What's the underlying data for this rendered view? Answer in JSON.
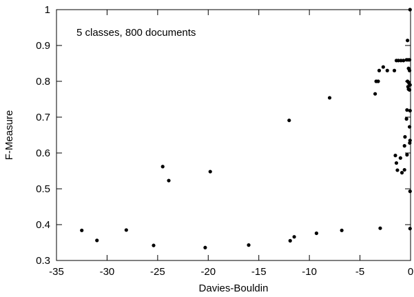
{
  "chart_data": {
    "type": "scatter",
    "xlabel": "Davies-Bouldin",
    "ylabel": "F-Measure",
    "annotation": "5 classes, 800 documents",
    "xlim": [
      -35,
      0
    ],
    "ylim": [
      0.3,
      1
    ],
    "xticks": [
      -35,
      -30,
      -25,
      -20,
      -15,
      -10,
      -5,
      0
    ],
    "yticks": [
      0.3,
      0.4,
      0.5,
      0.6,
      0.7,
      0.8,
      0.9,
      1
    ],
    "xtick_labels": [
      "-35",
      "-30",
      "-25",
      "-20",
      "-15",
      "-10",
      "-5",
      "0"
    ],
    "ytick_labels": [
      "0.3",
      "0.4",
      "0.5",
      "0.6",
      "0.7",
      "0.8",
      "0.9",
      "1"
    ],
    "grid": false,
    "marker_color": "#000000",
    "points": [
      [
        -32.5,
        0.384
      ],
      [
        -31.0,
        0.356
      ],
      [
        -28.1,
        0.385
      ],
      [
        -25.4,
        0.342
      ],
      [
        -24.5,
        0.562
      ],
      [
        -23.9,
        0.523
      ],
      [
        -20.3,
        0.336
      ],
      [
        -19.8,
        0.548
      ],
      [
        -16.0,
        0.343
      ],
      [
        -12.0,
        0.691
      ],
      [
        -11.9,
        0.355
      ],
      [
        -11.5,
        0.366
      ],
      [
        -9.3,
        0.376
      ],
      [
        -8.0,
        0.754
      ],
      [
        -6.8,
        0.384
      ],
      [
        -3.5,
        0.765
      ],
      [
        -3.4,
        0.8
      ],
      [
        -3.2,
        0.8
      ],
      [
        -3.1,
        0.83
      ],
      [
        -3.0,
        0.39
      ],
      [
        -2.7,
        0.84
      ],
      [
        -2.3,
        0.83
      ],
      [
        -1.6,
        0.83
      ],
      [
        -1.4,
        0.858
      ],
      [
        -1.2,
        0.858
      ],
      [
        -0.95,
        0.858
      ],
      [
        -0.7,
        0.858
      ],
      [
        -0.4,
        0.86
      ],
      [
        -0.25,
        0.86
      ],
      [
        -0.1,
        0.86
      ],
      [
        -0.3,
        0.914
      ],
      [
        -0.05,
        1.0
      ],
      [
        -0.2,
        0.836
      ],
      [
        -0.1,
        0.83
      ],
      [
        -0.3,
        0.8
      ],
      [
        -0.15,
        0.795
      ],
      [
        -0.05,
        0.79
      ],
      [
        -0.25,
        0.785
      ],
      [
        -0.2,
        0.778
      ],
      [
        -0.1,
        0.776
      ],
      [
        -0.35,
        0.72
      ],
      [
        -0.05,
        0.718
      ],
      [
        -0.4,
        0.695
      ],
      [
        -0.1,
        0.673
      ],
      [
        -0.55,
        0.645
      ],
      [
        -0.05,
        0.635
      ],
      [
        -0.08,
        0.628
      ],
      [
        -0.6,
        0.62
      ],
      [
        -1.5,
        0.593
      ],
      [
        -1.0,
        0.586
      ],
      [
        -0.35,
        0.595
      ],
      [
        -1.4,
        0.572
      ],
      [
        -1.3,
        0.552
      ],
      [
        -0.85,
        0.545
      ],
      [
        -0.6,
        0.553
      ],
      [
        -0.05,
        0.493
      ],
      [
        -0.05,
        0.389
      ]
    ]
  }
}
